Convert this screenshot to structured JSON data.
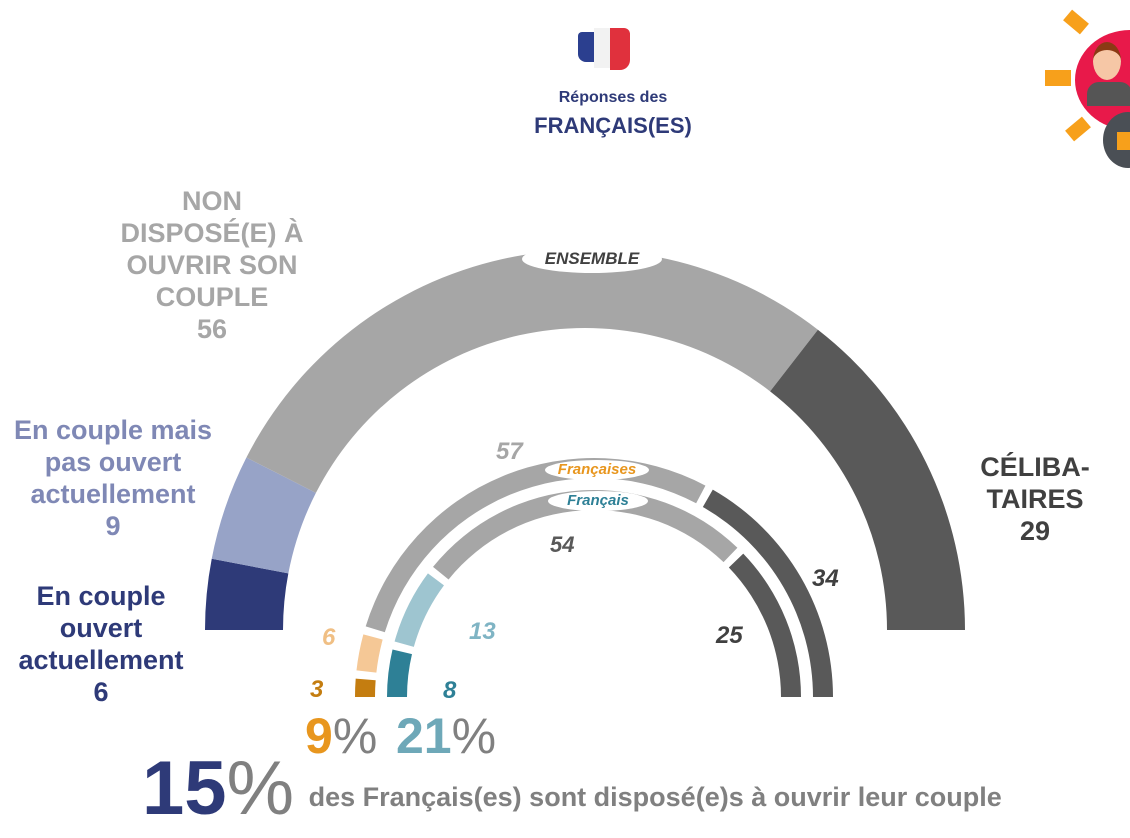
{
  "header": {
    "line1": "Réponses des",
    "line2": "FRANÇAIS(ES)",
    "flag_icon": "france-flag-icon",
    "corner_icon": "open-couple-illustration-icon"
  },
  "colors": {
    "open": "#2e3a78",
    "not_open": "#97a3c7",
    "not_willing": "#a6a6a6",
    "single": "#595959",
    "fem_open": "#c47d10",
    "fem_not_open": "#f5c896",
    "male_open": "#2e8096",
    "male_not_open": "#9ec5d0",
    "fem_text": "#e8961e",
    "male_text": "#2e8096"
  },
  "chart_data": {
    "type": "semi-donut",
    "categories": [
      "En couple ouvert actuellement",
      "En couple mais pas ouvert actuellement",
      "NON DISPOSÉ(E) À OUVRIR SON COUPLE",
      "CÉLIBA-TAIRES"
    ],
    "series": [
      {
        "name": "ENSEMBLE",
        "values": [
          6,
          9,
          56,
          29
        ]
      },
      {
        "name": "Françaises",
        "values": [
          3,
          6,
          57,
          34
        ]
      },
      {
        "name": "Français",
        "values": [
          8,
          13,
          54,
          25
        ]
      }
    ],
    "labels": {
      "open": [
        "En couple",
        "ouvert",
        "actuellement",
        "6"
      ],
      "not_open": [
        "En couple mais",
        "pas ouvert",
        "actuellement",
        "9"
      ],
      "not_willing": [
        "NON",
        "DISPOSÉ(E) À",
        "OUVRIR SON",
        "COUPLE",
        "56"
      ],
      "single": [
        "CÉLIBA-",
        "TAIRES",
        "29"
      ]
    },
    "ring_values": {
      "f_open": "3",
      "f_not_open": "6",
      "f_not_willing": "57",
      "f_single": "34",
      "m_open": "8",
      "m_not_open": "13",
      "m_not_willing": "54",
      "m_single": "25"
    },
    "totals": {
      "fem_num": "9",
      "male_num": "21",
      "pct": "%"
    }
  },
  "footer": {
    "big_num": "15",
    "big_pct": "%",
    "text": "des Français(es) sont disposé(e)s à ouvrir leur couple"
  }
}
